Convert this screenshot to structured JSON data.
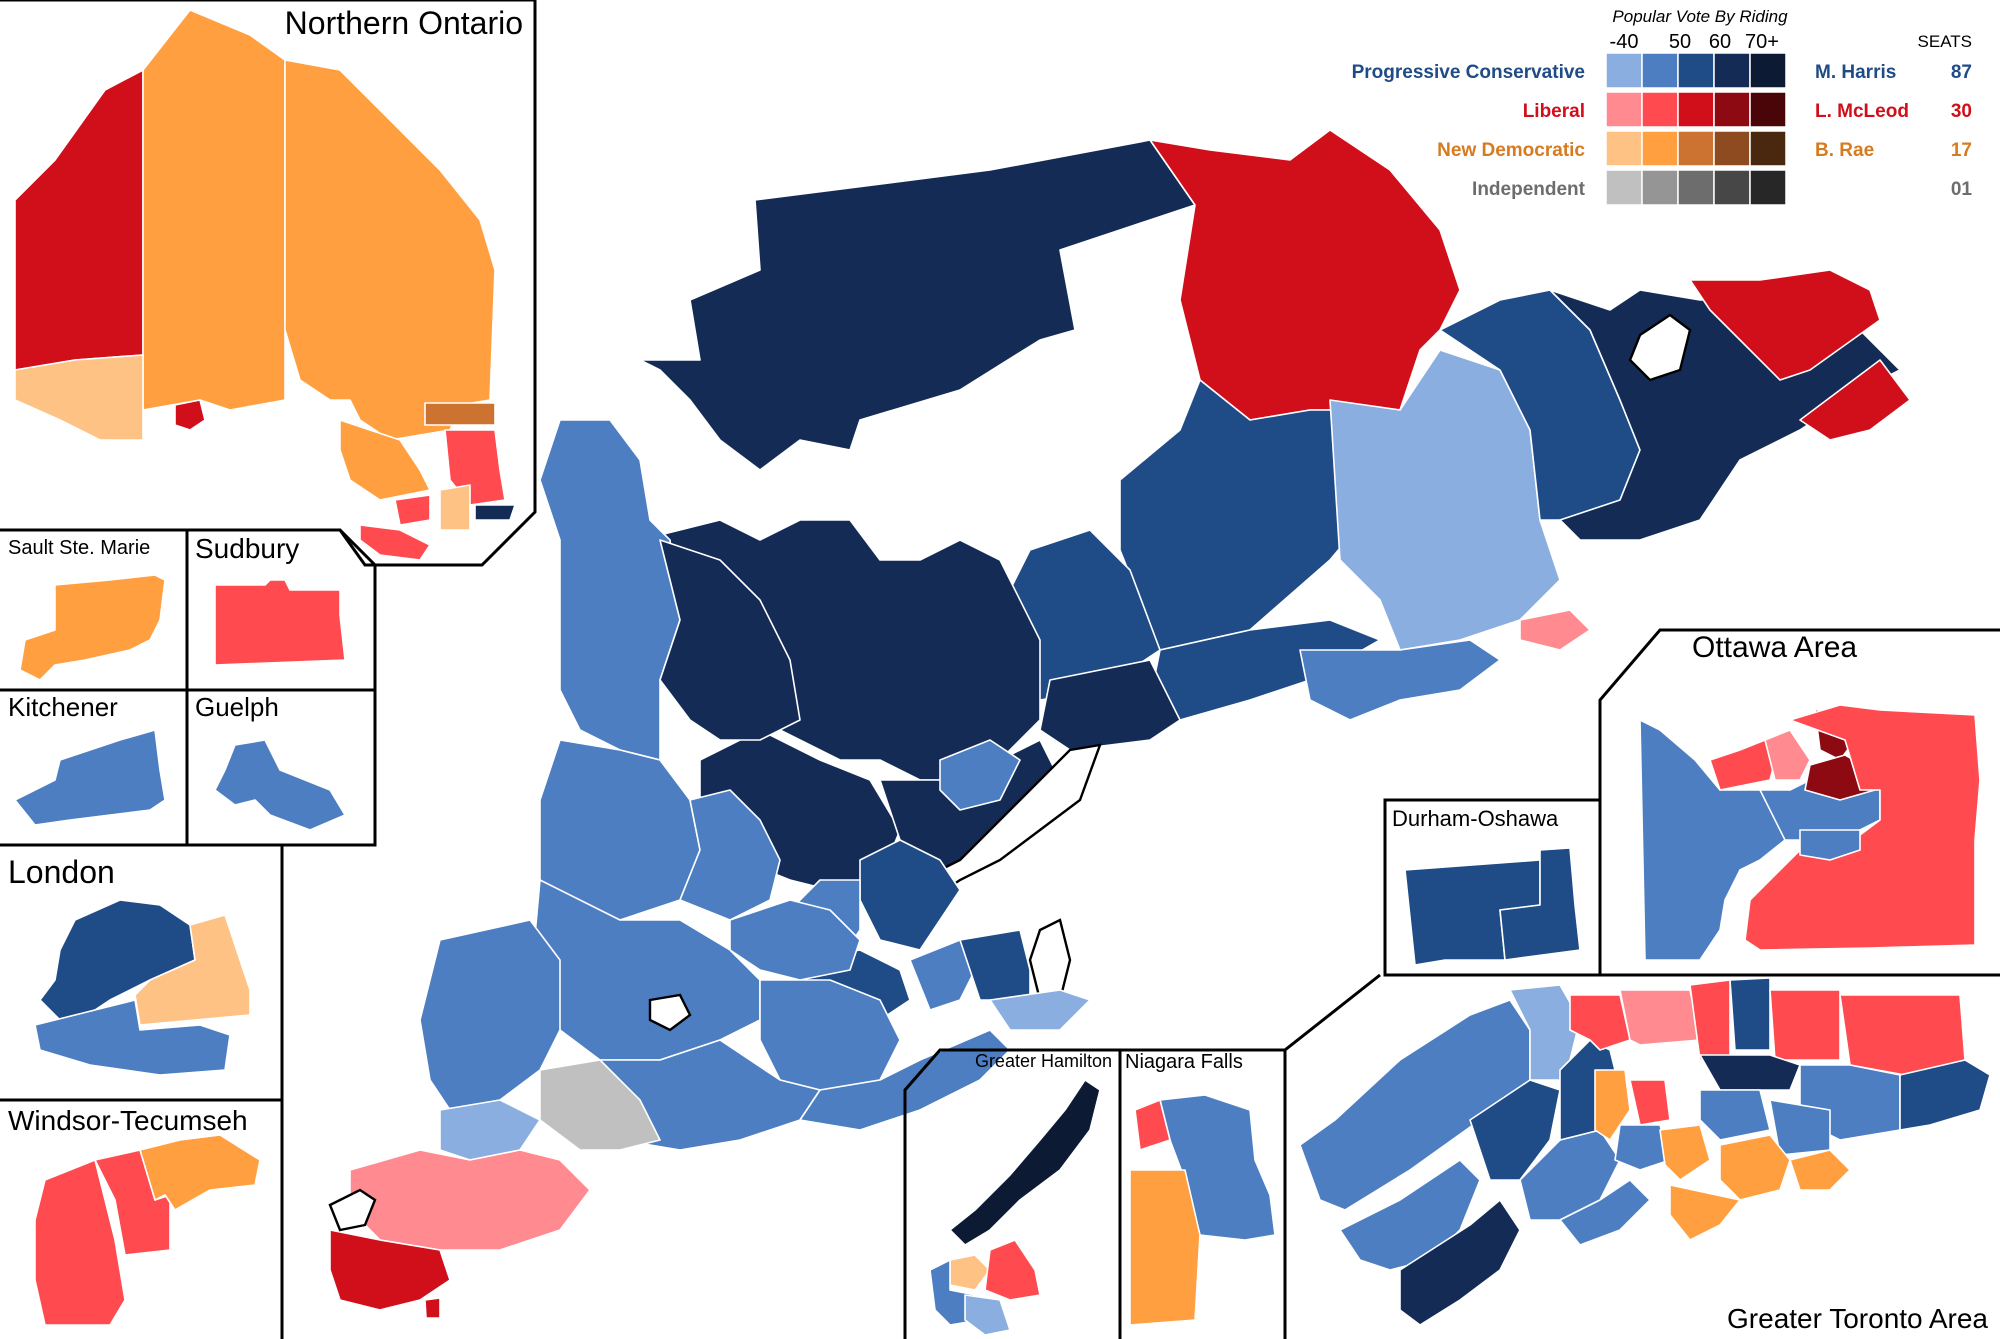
{
  "colors": {
    "pc": [
      "#8aaee0",
      "#4d7ec1",
      "#1f4b87",
      "#142c55",
      "#0c1a33"
    ],
    "lib": [
      "#ff8a8f",
      "#ff4a50",
      "#d10f1b",
      "#8e0a12",
      "#4a0508"
    ],
    "ndp": [
      "#ffc285",
      "#ff9f3f",
      "#cc7331",
      "#8e4b1f",
      "#4a2810"
    ],
    "ind": [
      "#c0c0c0",
      "#959595",
      "#6d6d6d",
      "#474747",
      "#272727"
    ],
    "pc_text": "#1f4b87",
    "lib_text": "#d10f1b",
    "ndp_text": "#d87a1e",
    "ind_text": "#6d6d6d"
  },
  "legend": {
    "caption": "Popular Vote By Riding",
    "bins": [
      "-40",
      "50",
      "60",
      "70+"
    ],
    "seats_header": "SEATS",
    "parties": [
      {
        "name": "Progressive Conservative",
        "leader": "M. Harris",
        "seats": "87",
        "key": "pc"
      },
      {
        "name": "Liberal",
        "leader": "L. McLeod",
        "seats": "30",
        "key": "lib"
      },
      {
        "name": "New Democratic",
        "leader": "B. Rae",
        "seats": "17",
        "key": "ndp"
      },
      {
        "name": "Independent",
        "leader": "",
        "seats": "01",
        "key": "ind"
      }
    ]
  },
  "insets": {
    "northern_ontario": "Northern Ontario",
    "sault_ste_marie": "Sault Ste. Marie",
    "sudbury": "Sudbury",
    "kitchener": "Kitchener",
    "guelph": "Guelph",
    "london": "London",
    "windsor_tecumseh": "Windsor-Tecumseh",
    "greater_hamilton": "Greater Hamilton",
    "niagara_falls": "Niagara Falls",
    "durham_oshawa": "Durham-Oshawa",
    "ottawa_area": "Ottawa Area",
    "greater_toronto_area": "Greater Toronto Area"
  }
}
